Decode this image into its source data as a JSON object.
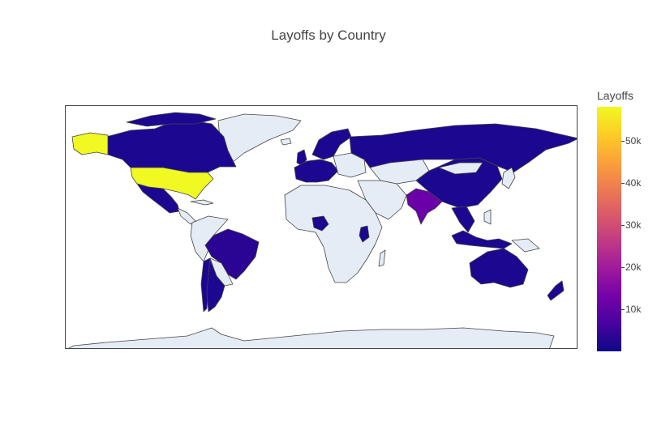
{
  "chart": {
    "title": "Layoffs by Country",
    "colorbar_title": "Layoffs",
    "colorbar_ticks": [
      "10k",
      "20k",
      "30k",
      "40k",
      "50k"
    ],
    "colorscale": [
      "#0d0887",
      "#46039f",
      "#7201a8",
      "#9c179e",
      "#bd3786",
      "#d8576b",
      "#ed7953",
      "#fb9f3a",
      "#fdca26",
      "#f0f921"
    ],
    "no_data_color": "#e5ecf6"
  },
  "chart_data": {
    "type": "choropleth",
    "title": "Layoffs by Country",
    "colorbar": {
      "title": "Layoffs",
      "range": [
        0,
        58000
      ],
      "ticks": [
        10000,
        20000,
        30000,
        40000,
        50000
      ]
    },
    "projection": "equirectangular",
    "countries": [
      {
        "name": "United States",
        "value": 58000
      },
      {
        "name": "India",
        "value": 14000
      },
      {
        "name": "Brazil",
        "value": 4500
      },
      {
        "name": "Canada",
        "value": 2500
      },
      {
        "name": "China",
        "value": 1500
      },
      {
        "name": "Russia",
        "value": 600
      },
      {
        "name": "Argentina",
        "value": 500
      },
      {
        "name": "Chile",
        "value": 500
      },
      {
        "name": "Mexico",
        "value": 800
      },
      {
        "name": "Australia",
        "value": 1500
      },
      {
        "name": "Indonesia",
        "value": 1200
      },
      {
        "name": "Germany",
        "value": 1500
      },
      {
        "name": "United Kingdom",
        "value": 1500
      },
      {
        "name": "Nigeria",
        "value": 300
      },
      {
        "name": "Kenya",
        "value": 300
      },
      {
        "name": "New Zealand",
        "value": 300
      },
      {
        "name": "Singapore",
        "value": 1000
      }
    ]
  }
}
